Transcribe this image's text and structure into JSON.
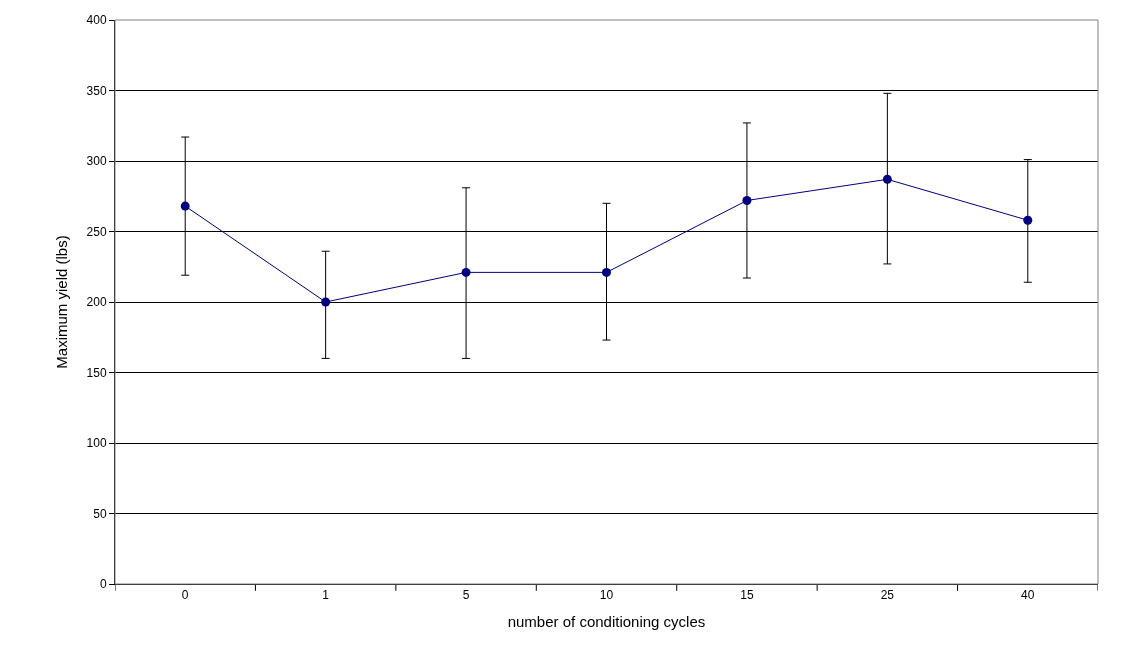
{
  "chart_data": {
    "type": "line",
    "xlabel": "number of conditioning cycles",
    "ylabel": "Maximum yield (lbs)",
    "categories": [
      "0",
      "1",
      "5",
      "10",
      "15",
      "25",
      "40"
    ],
    "series": [
      {
        "color": "#000080",
        "values": [
          268,
          200,
          221,
          221,
          272,
          287,
          258
        ],
        "errors": [
          [
            219,
            317
          ],
          [
            160,
            236
          ],
          [
            160,
            281
          ],
          [
            173,
            270
          ],
          [
            217,
            327
          ],
          [
            227,
            348
          ],
          [
            214,
            301
          ]
        ]
      }
    ],
    "ylim": [
      0,
      400
    ],
    "yticks": [
      0,
      50,
      100,
      150,
      200,
      250,
      300,
      350,
      400
    ],
    "grid": "y",
    "marker": "circle",
    "line_style": "solid"
  }
}
